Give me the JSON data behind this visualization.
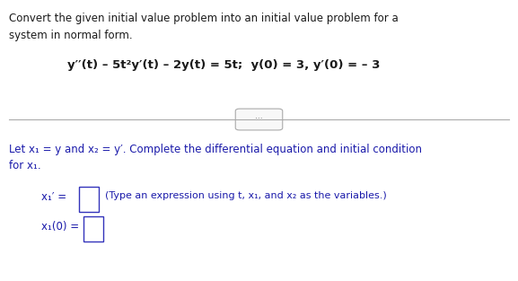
{
  "bg_color": "#ffffff",
  "text_color": "#1a1a1a",
  "blue_color": "#1a1aaa",
  "figsize": [
    5.77,
    3.13
  ],
  "dpi": 100,
  "top_text_line1": "Convert the given initial value problem into an initial value problem for a",
  "top_text_line2": "system in normal form.",
  "equation": "y′′(t) – 5t²y′(t) – 2y(t) = 5t;  y(0) = 3, y′(0) = – 3",
  "bottom_text_line1": "Let x₁ = y and x₂ = y′. Complete the differential equation and initial condition",
  "bottom_text_line2": "for x₁.",
  "eq_line1_label": "x₁′ = ",
  "eq_line1_hint": "(Type an expression using t, x₁, and x₂ as the variables.)",
  "eq_line2_label": "x₁(0) = "
}
